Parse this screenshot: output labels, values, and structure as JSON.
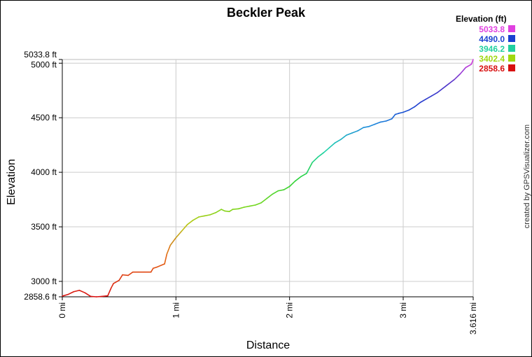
{
  "chart_data": {
    "type": "line",
    "title": "Beckler Peak",
    "xlabel": "Distance",
    "ylabel": "Elevation",
    "xlim": [
      0,
      3.616
    ],
    "ylim": [
      2858.6,
      5033.8
    ],
    "x_ticks": [
      "0 mi",
      "1 mi",
      "2 mi",
      "3 mi",
      "3.616 mi"
    ],
    "y_ticks": [
      "2858.6 ft",
      "3000 ft",
      "3500 ft",
      "4000 ft",
      "4500 ft",
      "5000 ft",
      "5033.8 ft"
    ],
    "grid": true,
    "legend_title": "Elevation (ft)",
    "legend_placement": "top-right",
    "legend": [
      {
        "label": "5033.8",
        "color": "#e040e0"
      },
      {
        "label": "4490.0",
        "color": "#1a40d0"
      },
      {
        "label": "3946.2",
        "color": "#20d0a0"
      },
      {
        "label": "3402.4",
        "color": "#a0d810"
      },
      {
        "label": "2858.6",
        "color": "#d81010"
      }
    ],
    "series": [
      {
        "x": [
          0.0,
          0.05,
          0.1,
          0.15,
          0.2,
          0.25,
          0.3,
          0.35,
          0.4,
          0.43,
          0.45,
          0.5,
          0.53,
          0.58,
          0.62,
          0.67,
          0.72,
          0.78,
          0.8,
          0.83,
          0.9,
          0.92,
          0.95,
          1.0,
          1.05,
          1.1,
          1.15,
          1.2,
          1.25,
          1.3,
          1.35,
          1.4,
          1.43,
          1.47,
          1.5,
          1.55,
          1.6,
          1.65,
          1.7,
          1.75,
          1.8,
          1.85,
          1.9,
          1.95,
          2.0,
          2.05,
          2.1,
          2.15,
          2.2,
          2.25,
          2.3,
          2.35,
          2.4,
          2.45,
          2.5,
          2.55,
          2.6,
          2.65,
          2.7,
          2.75,
          2.8,
          2.85,
          2.9,
          2.93,
          2.96,
          3.0,
          3.05,
          3.1,
          3.15,
          3.2,
          3.25,
          3.3,
          3.35,
          3.4,
          3.45,
          3.5,
          3.55,
          3.6,
          3.616
        ],
        "y": [
          2865,
          2880,
          2905,
          2918,
          2895,
          2862,
          2858.6,
          2862,
          2868,
          2940,
          2980,
          3010,
          3060,
          3055,
          3085,
          3085,
          3085,
          3085,
          3120,
          3130,
          3160,
          3250,
          3330,
          3400,
          3460,
          3520,
          3560,
          3590,
          3600,
          3610,
          3630,
          3660,
          3645,
          3640,
          3660,
          3665,
          3680,
          3690,
          3700,
          3720,
          3760,
          3800,
          3830,
          3840,
          3870,
          3920,
          3960,
          3990,
          4090,
          4140,
          4180,
          4225,
          4270,
          4300,
          4340,
          4360,
          4380,
          4410,
          4420,
          4440,
          4460,
          4470,
          4490,
          4530,
          4540,
          4550,
          4570,
          4600,
          4640,
          4670,
          4700,
          4730,
          4770,
          4810,
          4850,
          4900,
          4960,
          4990,
          5033.8
        ]
      }
    ]
  },
  "credit": "created by GPSVisualizer.com"
}
